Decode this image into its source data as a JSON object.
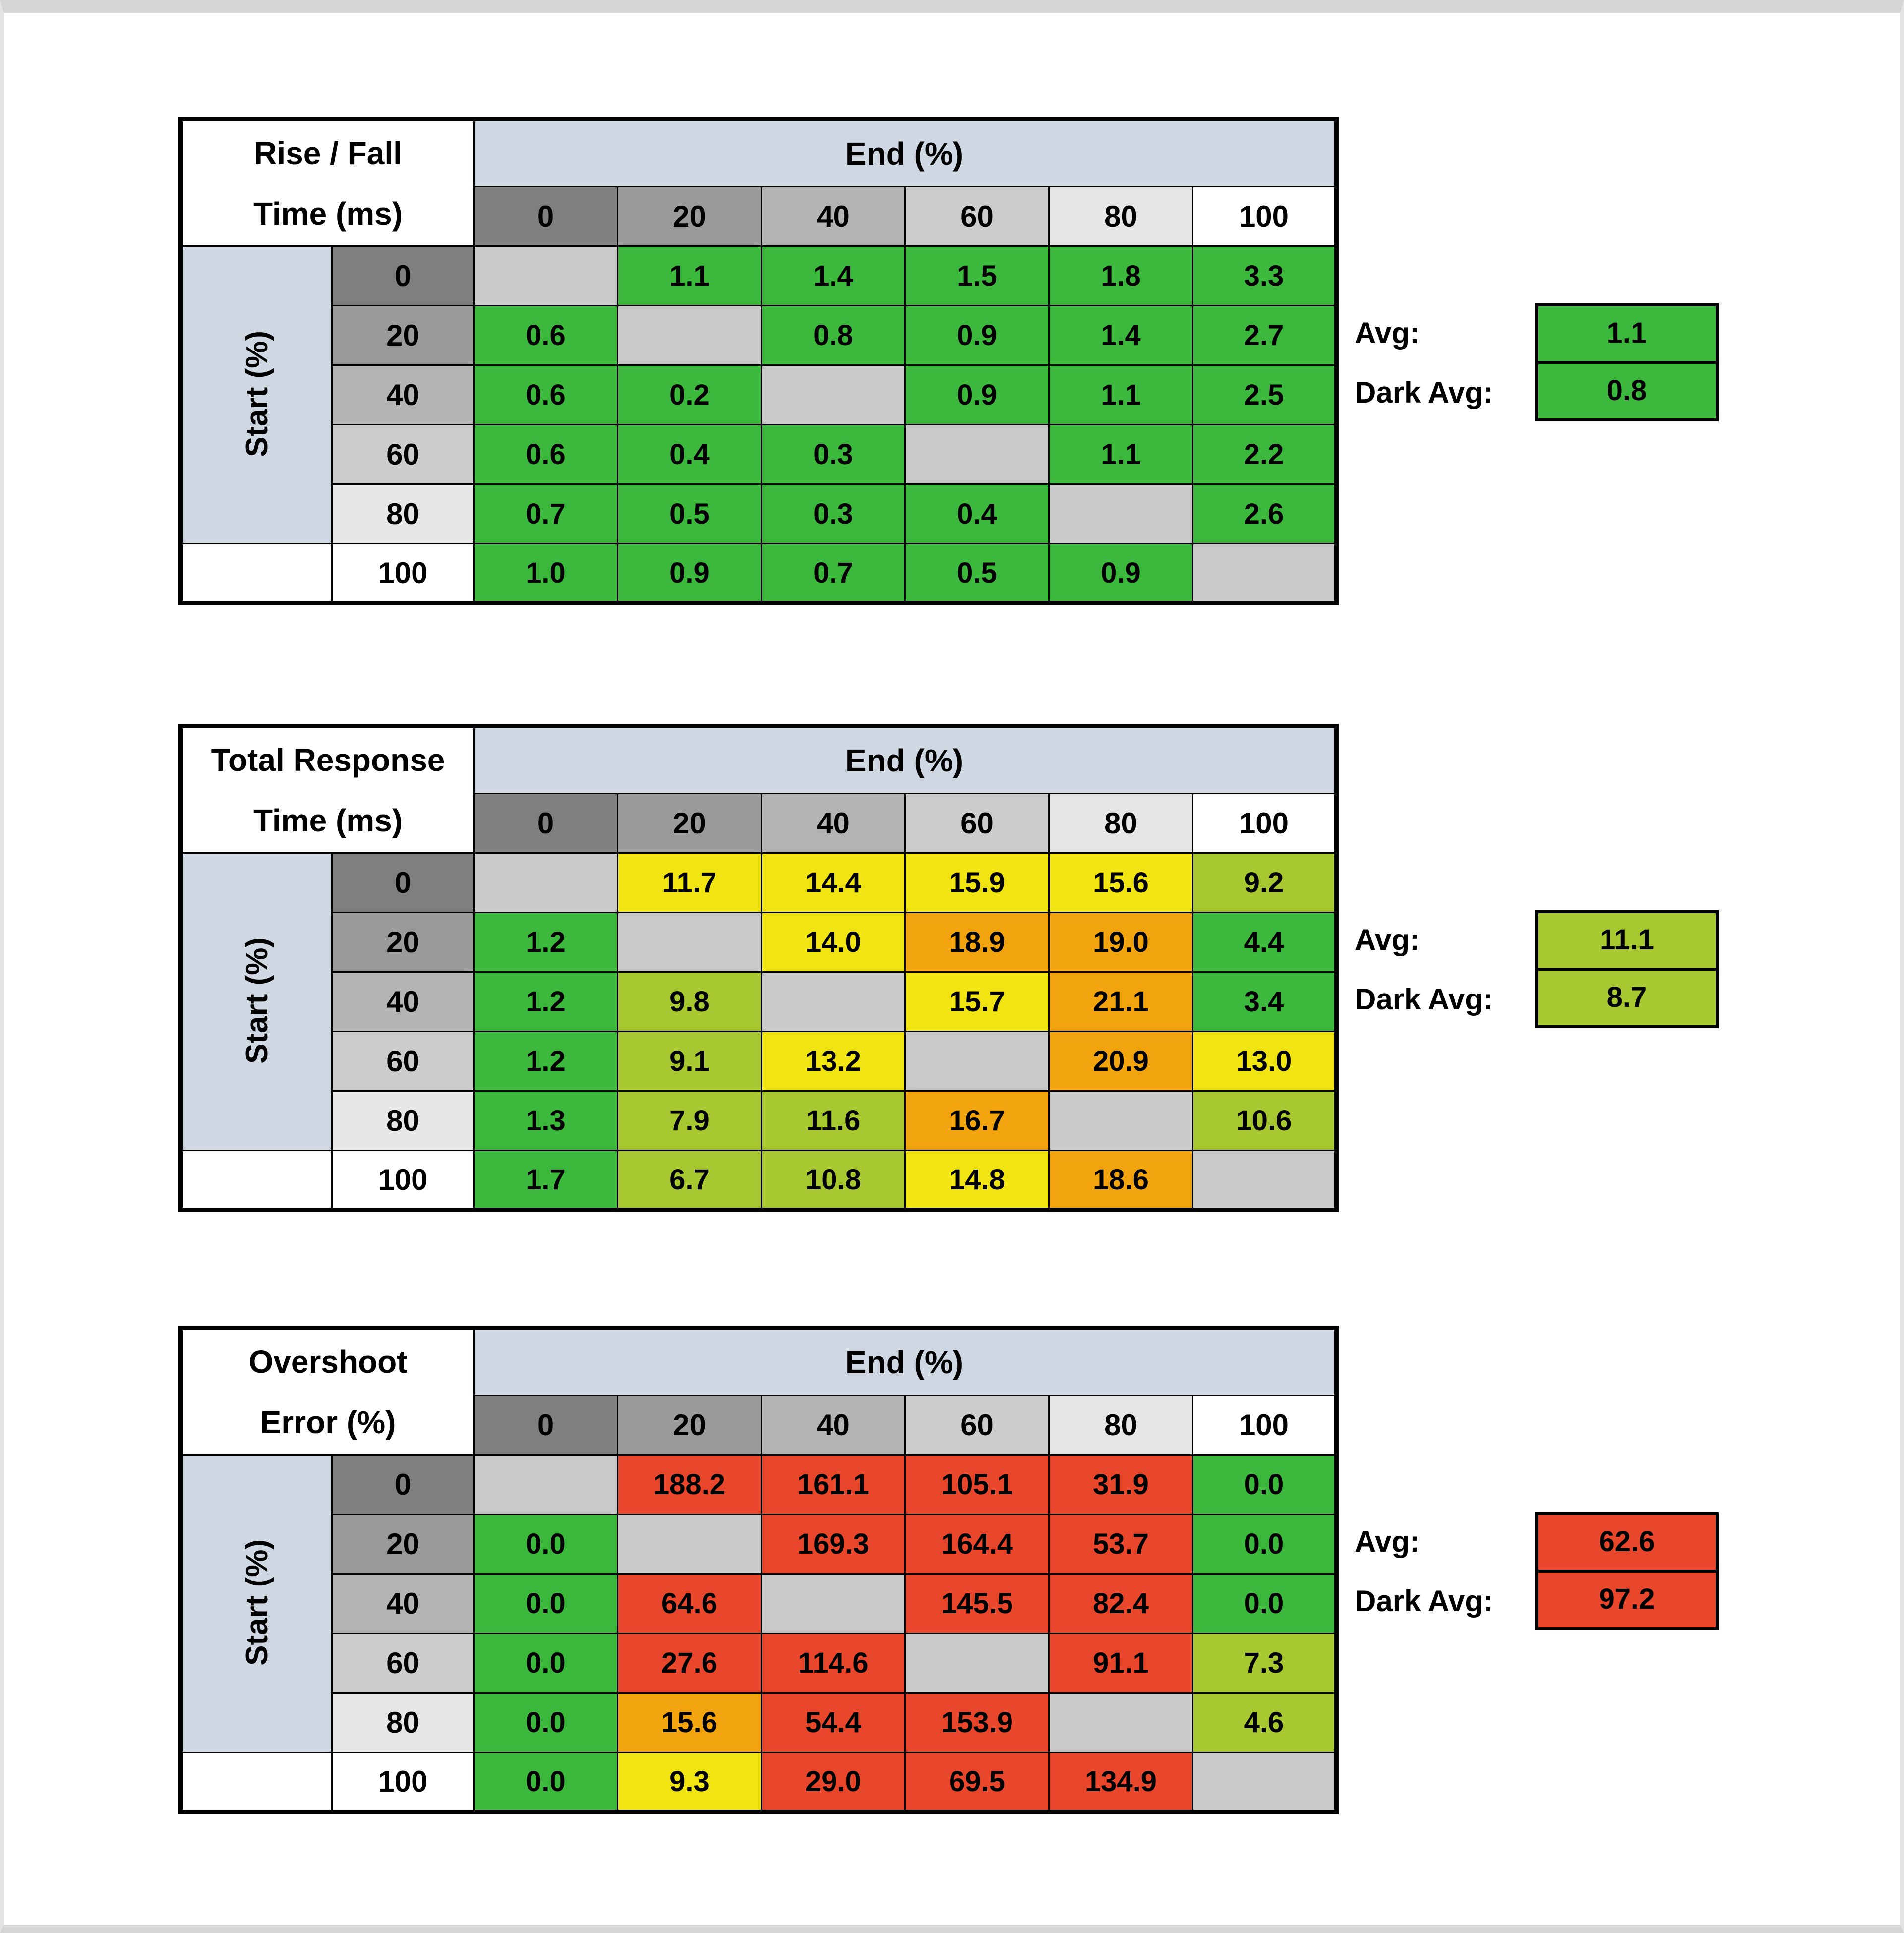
{
  "page": {
    "background": "#ffffff",
    "frame_top_color": "#d5d5d5",
    "frame_side_color": "#e3e3e3"
  },
  "palette": {
    "g": "#3cb83c",
    "yg": "#a8c832",
    "y": "#f0e412",
    "o": "#f2a40e",
    "r": "#e8472b",
    "diagonal": "#c9c9c9",
    "band": "#cfd8e2",
    "shades": [
      "#7f7f7f",
      "#9a9a9a",
      "#b4b4b4",
      "#cdcdcd",
      "#e7e7e7",
      "#ffffff"
    ]
  },
  "chart_data": [
    {
      "type": "heatmap",
      "title_line1": "Rise / Fall",
      "title_line2": "Time (ms)",
      "col_axis_label": "End (%)",
      "row_axis_label": "Start (%)",
      "columns": [
        "0",
        "20",
        "40",
        "60",
        "80",
        "100"
      ],
      "rows": [
        "0",
        "20",
        "40",
        "60",
        "80",
        "100"
      ],
      "values": [
        [
          null,
          1.1,
          1.4,
          1.5,
          1.8,
          3.3
        ],
        [
          0.6,
          null,
          0.8,
          0.9,
          1.4,
          2.7
        ],
        [
          0.6,
          0.2,
          null,
          0.9,
          1.1,
          2.5
        ],
        [
          0.6,
          0.4,
          0.3,
          null,
          1.1,
          2.2
        ],
        [
          0.7,
          0.5,
          0.3,
          0.4,
          null,
          2.6
        ],
        [
          1.0,
          0.9,
          0.7,
          0.5,
          0.9,
          null
        ]
      ],
      "cell_colors": [
        [
          null,
          "g",
          "g",
          "g",
          "g",
          "g"
        ],
        [
          "g",
          null,
          "g",
          "g",
          "g",
          "g"
        ],
        [
          "g",
          "g",
          null,
          "g",
          "g",
          "g"
        ],
        [
          "g",
          "g",
          "g",
          null,
          "g",
          "g"
        ],
        [
          "g",
          "g",
          "g",
          "g",
          null,
          "g"
        ],
        [
          "g",
          "g",
          "g",
          "g",
          "g",
          null
        ]
      ],
      "avg": {
        "label": "Avg:",
        "value": 1.1,
        "color": "g"
      },
      "dark_avg": {
        "label": "Dark Avg:",
        "value": 0.8,
        "color": "g"
      }
    },
    {
      "type": "heatmap",
      "title_line1": "Total Response",
      "title_line2": "Time (ms)",
      "col_axis_label": "End (%)",
      "row_axis_label": "Start (%)",
      "columns": [
        "0",
        "20",
        "40",
        "60",
        "80",
        "100"
      ],
      "rows": [
        "0",
        "20",
        "40",
        "60",
        "80",
        "100"
      ],
      "values": [
        [
          null,
          11.7,
          14.4,
          15.9,
          15.6,
          9.2
        ],
        [
          1.2,
          null,
          14.0,
          18.9,
          19.0,
          4.4
        ],
        [
          1.2,
          9.8,
          null,
          15.7,
          21.1,
          3.4
        ],
        [
          1.2,
          9.1,
          13.2,
          null,
          20.9,
          13.0
        ],
        [
          1.3,
          7.9,
          11.6,
          16.7,
          null,
          10.6
        ],
        [
          1.7,
          6.7,
          10.8,
          14.8,
          18.6,
          null
        ]
      ],
      "cell_colors": [
        [
          null,
          "y",
          "y",
          "y",
          "y",
          "yg"
        ],
        [
          "g",
          null,
          "y",
          "o",
          "o",
          "g"
        ],
        [
          "g",
          "yg",
          null,
          "y",
          "o",
          "g"
        ],
        [
          "g",
          "yg",
          "y",
          null,
          "o",
          "y"
        ],
        [
          "g",
          "yg",
          "yg",
          "o",
          null,
          "yg"
        ],
        [
          "g",
          "yg",
          "yg",
          "y",
          "o",
          null
        ]
      ],
      "avg": {
        "label": "Avg:",
        "value": 11.1,
        "color": "yg"
      },
      "dark_avg": {
        "label": "Dark Avg:",
        "value": 8.7,
        "color": "yg"
      }
    },
    {
      "type": "heatmap",
      "title_line1": "Overshoot",
      "title_line2": "Error (%)",
      "col_axis_label": "End (%)",
      "row_axis_label": "Start (%)",
      "columns": [
        "0",
        "20",
        "40",
        "60",
        "80",
        "100"
      ],
      "rows": [
        "0",
        "20",
        "40",
        "60",
        "80",
        "100"
      ],
      "values": [
        [
          null,
          188.2,
          161.1,
          105.1,
          31.9,
          0.0
        ],
        [
          0.0,
          null,
          169.3,
          164.4,
          53.7,
          0.0
        ],
        [
          0.0,
          64.6,
          null,
          145.5,
          82.4,
          0.0
        ],
        [
          0.0,
          27.6,
          114.6,
          null,
          91.1,
          7.3
        ],
        [
          0.0,
          15.6,
          54.4,
          153.9,
          null,
          4.6
        ],
        [
          0.0,
          9.3,
          29.0,
          69.5,
          134.9,
          null
        ]
      ],
      "cell_colors": [
        [
          null,
          "r",
          "r",
          "r",
          "r",
          "g"
        ],
        [
          "g",
          null,
          "r",
          "r",
          "r",
          "g"
        ],
        [
          "g",
          "r",
          null,
          "r",
          "r",
          "g"
        ],
        [
          "g",
          "r",
          "r",
          null,
          "r",
          "yg"
        ],
        [
          "g",
          "o",
          "r",
          "r",
          null,
          "yg"
        ],
        [
          "g",
          "y",
          "r",
          "r",
          "r",
          null
        ]
      ],
      "avg": {
        "label": "Avg:",
        "value": 62.6,
        "color": "r"
      },
      "dark_avg": {
        "label": "Dark Avg:",
        "value": 97.2,
        "color": "r"
      }
    }
  ]
}
